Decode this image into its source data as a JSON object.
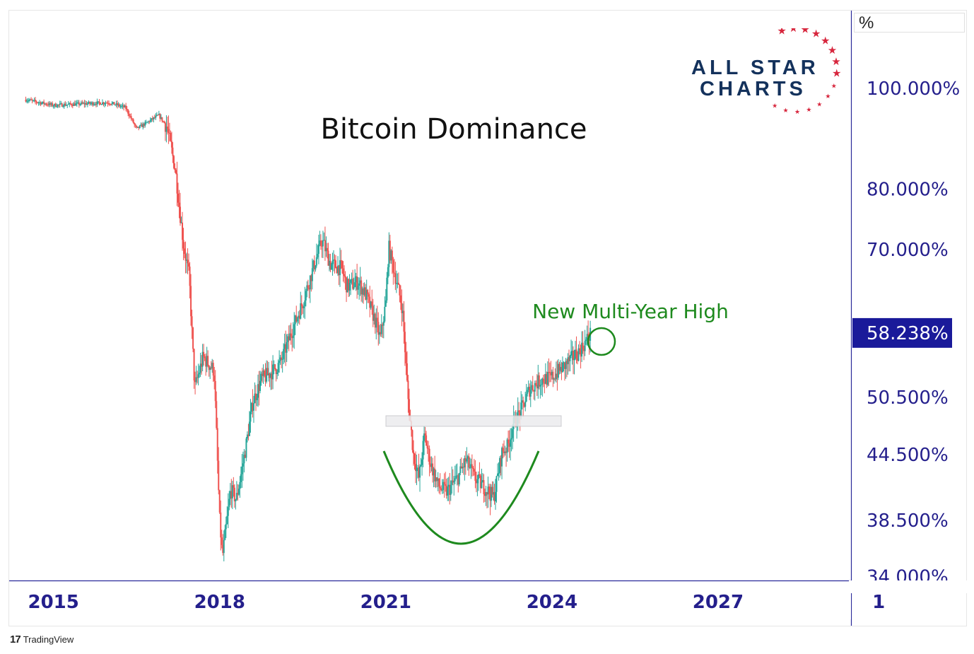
{
  "title": "Bitcoin Dominance",
  "annotation": "New Multi-Year High",
  "scale_unit": "%",
  "brand": {
    "line1": "ALL STAR",
    "line2": "CHARTS",
    "color": "#14325c",
    "star_color": "#d7263d"
  },
  "footer": {
    "logo": "TradingView"
  },
  "colors": {
    "up": "#26a69a",
    "down": "#ef5350",
    "axis": "#2a2a9a",
    "label": "#241f8c",
    "annotation": "#1e8a1e",
    "last_price_bg": "#1a1a9a"
  },
  "chart_data": {
    "type": "candlestick",
    "title": "Bitcoin Dominance",
    "y_scale": "log",
    "ylim": [
      34,
      120
    ],
    "xlim": [
      2014.2,
      2029.4
    ],
    "y_ticks": [
      "100.000%",
      "80.000%",
      "70.000%",
      "50.500%",
      "44.500%",
      "38.500%",
      "34.000%"
    ],
    "x_ticks": [
      "2015",
      "2018",
      "2021",
      "2024",
      "2027",
      "1"
    ],
    "last_value_label": "58.238%",
    "series": [
      {
        "values": [
          [
            2014.5,
            97.5
          ],
          [
            2015.0,
            96.3
          ],
          [
            2015.5,
            96.6
          ],
          [
            2016.0,
            96.9
          ],
          [
            2016.3,
            95.8
          ],
          [
            2016.5,
            91.4
          ],
          [
            2016.9,
            94.2
          ],
          [
            2017.05,
            91.8
          ],
          [
            2017.2,
            83.5
          ],
          [
            2017.35,
            70.5
          ],
          [
            2017.45,
            66.0
          ],
          [
            2017.55,
            51.5
          ],
          [
            2017.7,
            55.2
          ],
          [
            2017.9,
            53.6
          ],
          [
            2018.0,
            38.5
          ],
          [
            2018.05,
            35.5
          ],
          [
            2018.2,
            41.2
          ],
          [
            2018.3,
            40.3
          ],
          [
            2018.45,
            44.5
          ],
          [
            2018.6,
            50.0
          ],
          [
            2018.75,
            52.5
          ],
          [
            2018.95,
            53.5
          ],
          [
            2019.1,
            54.5
          ],
          [
            2019.3,
            58.4
          ],
          [
            2019.5,
            62.3
          ],
          [
            2019.7,
            67.5
          ],
          [
            2019.85,
            71.5
          ],
          [
            2020.0,
            67.8
          ],
          [
            2020.2,
            67.2
          ],
          [
            2020.3,
            64.5
          ],
          [
            2020.5,
            65.2
          ],
          [
            2020.65,
            63.2
          ],
          [
            2020.8,
            60.0
          ],
          [
            2020.9,
            57.5
          ],
          [
            2021.0,
            62.2
          ],
          [
            2021.05,
            70.5
          ],
          [
            2021.2,
            65.0
          ],
          [
            2021.3,
            61.5
          ],
          [
            2021.4,
            50.5
          ],
          [
            2021.5,
            44.5
          ],
          [
            2021.6,
            42.2
          ],
          [
            2021.7,
            46.5
          ],
          [
            2021.8,
            43.8
          ],
          [
            2021.95,
            41.5
          ],
          [
            2022.1,
            41.0
          ],
          [
            2022.3,
            42.3
          ],
          [
            2022.45,
            44.0
          ],
          [
            2022.6,
            42.3
          ],
          [
            2022.8,
            41.3
          ],
          [
            2022.95,
            40.5
          ],
          [
            2023.1,
            44.8
          ],
          [
            2023.2,
            45.3
          ],
          [
            2023.3,
            47.5
          ],
          [
            2023.45,
            49.2
          ],
          [
            2023.6,
            51.5
          ],
          [
            2023.8,
            52.5
          ],
          [
            2024.0,
            52.8
          ],
          [
            2024.2,
            54.0
          ],
          [
            2024.35,
            55.0
          ],
          [
            2024.5,
            56.0
          ],
          [
            2024.6,
            57.0
          ],
          [
            2024.7,
            58.2
          ]
        ]
      }
    ]
  }
}
